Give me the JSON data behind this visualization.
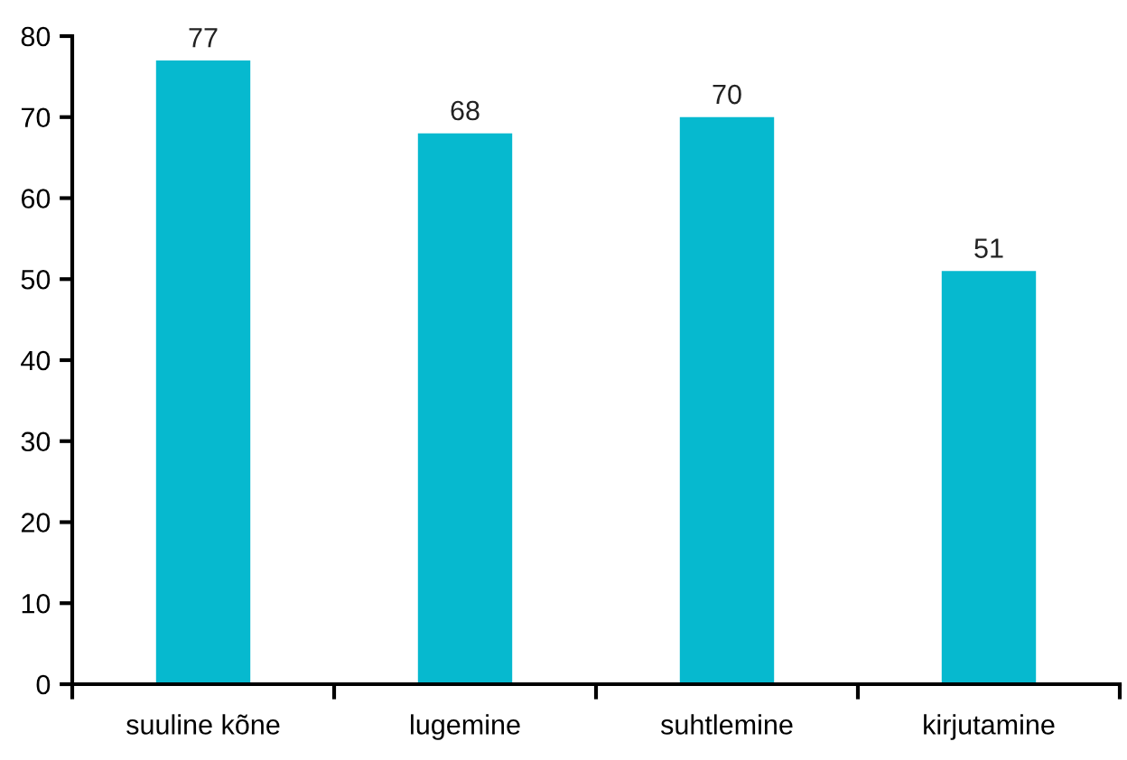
{
  "chart_data": {
    "type": "bar",
    "categories": [
      "suuline kõne",
      "lugemine",
      "suhtlemine",
      "kirjutamine"
    ],
    "values": [
      77,
      68,
      70,
      51
    ],
    "color": "#06b9cf",
    "ylim": [
      0,
      80
    ],
    "yticks": [
      0,
      10,
      20,
      30,
      40,
      50,
      60,
      70,
      80
    ],
    "data_labels": true,
    "grid": false,
    "legend": false
  }
}
